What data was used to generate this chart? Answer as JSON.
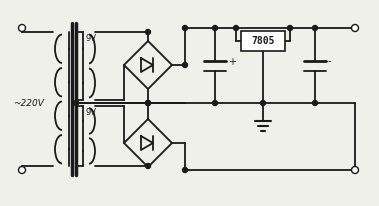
{
  "bg_color": "#f0f0ea",
  "line_color": "#1a1a1a",
  "lw": 1.3,
  "label_220": "~220V",
  "label_9v_top": "9V",
  "label_9v_bot": "9V",
  "label_7805": "7805",
  "label_plus": "+",
  "label_minus": "-"
}
